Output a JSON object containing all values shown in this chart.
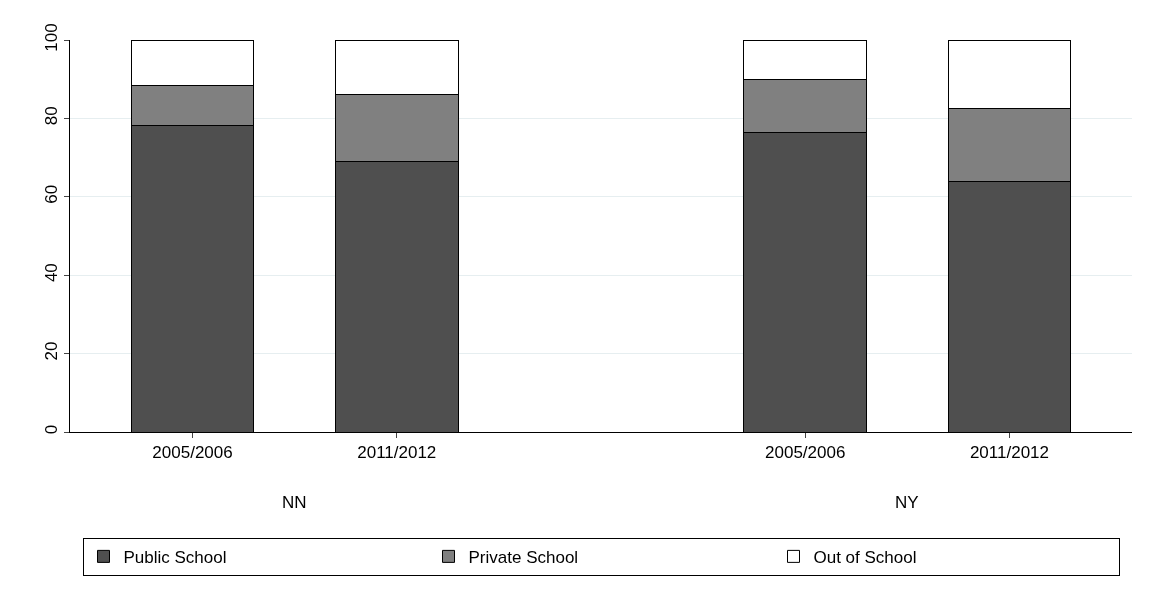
{
  "chart_data": {
    "type": "bar",
    "stacked": true,
    "categories": [
      "2005/2006",
      "2011/2012",
      null,
      "2005/2006",
      "2011/2012"
    ],
    "series": [
      {
        "name": "Public School",
        "color": "#4f4f4f",
        "values": [
          78.3,
          68.9,
          null,
          76.5,
          64
        ]
      },
      {
        "name": "Private School",
        "color": "#808080",
        "values": [
          10.2,
          17.3,
          null,
          13.3,
          18.5
        ]
      },
      {
        "name": "Out of School",
        "color": "#ffffff",
        "values": [
          11.5,
          13.8,
          null,
          10.2,
          17.5
        ]
      }
    ],
    "annotations": [
      "NN",
      "NY"
    ],
    "ylim": [
      0,
      100
    ],
    "yticks": [
      0,
      20,
      40,
      60,
      80,
      100
    ],
    "grid": "y",
    "legend": "bottom"
  }
}
